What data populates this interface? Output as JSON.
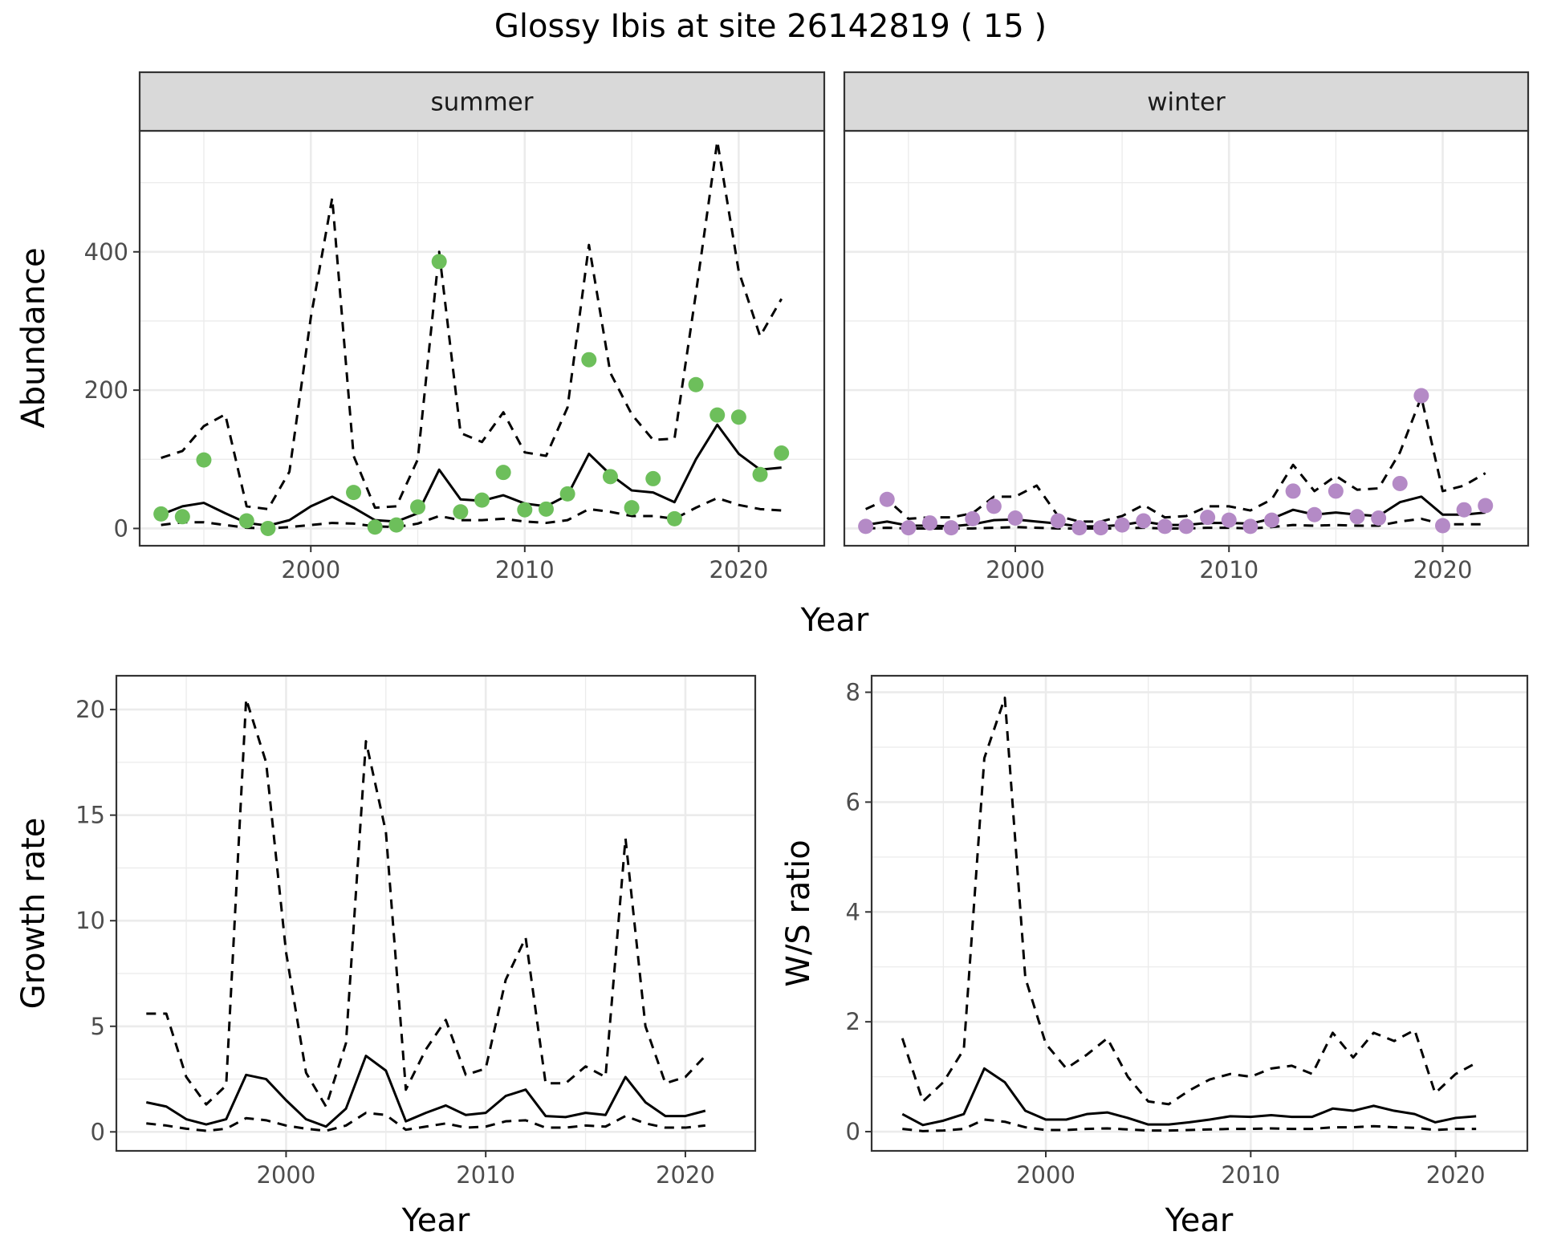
{
  "title": "Glossy Ibis at site 26142819 ( 15 )",
  "colors": {
    "summer_points": "#6dbf5b",
    "winter_points": "#b48ac6",
    "line": "#000000",
    "strip_fill": "#d9d9d9",
    "grid": "#ebebeb"
  },
  "chart_data": [
    {
      "type": "line",
      "panel": "summer",
      "facet_label": "summer",
      "xlabel": "Year",
      "ylabel": "Abundance",
      "xlim": [
        1992,
        2024
      ],
      "ylim": [
        -25,
        575
      ],
      "xticks": [
        2000,
        2010,
        2020
      ],
      "yticks": [
        0,
        200,
        400
      ],
      "grid": true,
      "x": [
        1993,
        1994,
        1995,
        1996,
        1997,
        1998,
        1999,
        2000,
        2001,
        2002,
        2003,
        2004,
        2005,
        2006,
        2007,
        2008,
        2009,
        2010,
        2011,
        2012,
        2013,
        2014,
        2015,
        2016,
        2017,
        2018,
        2019,
        2020,
        2021,
        2022
      ],
      "series": [
        {
          "style": "dashed",
          "values": [
            102,
            112,
            148,
            165,
            32,
            28,
            82,
            305,
            478,
            105,
            30,
            32,
            100,
            400,
            138,
            125,
            168,
            110,
            105,
            175,
            410,
            225,
            165,
            128,
            130,
            340,
            560,
            372,
            278,
            332
          ]
        },
        {
          "style": "solid",
          "values": [
            20,
            32,
            37,
            22,
            8,
            4,
            12,
            32,
            46,
            30,
            12,
            10,
            22,
            85,
            42,
            40,
            48,
            36,
            32,
            48,
            108,
            78,
            55,
            52,
            38,
            100,
            150,
            108,
            85,
            88
          ]
        },
        {
          "style": "dashed",
          "values": [
            5,
            9,
            9,
            5,
            1,
            0,
            2,
            5,
            8,
            7,
            3,
            2,
            7,
            18,
            12,
            12,
            14,
            10,
            8,
            12,
            28,
            24,
            18,
            18,
            14,
            30,
            44,
            34,
            28,
            26
          ]
        }
      ],
      "points": {
        "x": [
          1993,
          1994,
          1995,
          1997,
          1998,
          2002,
          2003,
          2004,
          2005,
          2006,
          2007,
          2008,
          2009,
          2010,
          2011,
          2012,
          2013,
          2014,
          2015,
          2016,
          2017,
          2018,
          2019,
          2020,
          2021,
          2022
        ],
        "y": [
          21,
          17,
          99,
          11,
          0,
          52,
          2,
          5,
          31,
          386,
          24,
          41,
          81,
          27,
          28,
          50,
          244,
          75,
          30,
          72,
          14,
          208,
          164,
          161,
          78,
          109
        ]
      }
    },
    {
      "type": "line",
      "panel": "winter",
      "facet_label": "winter",
      "xlabel": "Year",
      "ylabel": "",
      "xlim": [
        1992,
        2024
      ],
      "ylim": [
        -25,
        575
      ],
      "xticks": [
        2000,
        2010,
        2020
      ],
      "yticks": [
        0,
        200,
        400
      ],
      "grid": true,
      "x": [
        1993,
        1994,
        1995,
        1996,
        1997,
        1998,
        1999,
        2000,
        2001,
        2002,
        2003,
        2004,
        2005,
        2006,
        2007,
        2008,
        2009,
        2010,
        2011,
        2012,
        2013,
        2014,
        2015,
        2016,
        2017,
        2018,
        2019,
        2020,
        2021,
        2022
      ],
      "series": [
        {
          "style": "dashed",
          "values": [
            28,
            42,
            14,
            16,
            16,
            22,
            46,
            46,
            62,
            18,
            10,
            10,
            18,
            34,
            16,
            18,
            32,
            32,
            26,
            42,
            92,
            54,
            76,
            56,
            58,
            110,
            190,
            54,
            62,
            80
          ]
        },
        {
          "style": "solid",
          "values": [
            5,
            10,
            4,
            4,
            3,
            6,
            12,
            13,
            10,
            7,
            3,
            3,
            5,
            10,
            5,
            5,
            8,
            8,
            7,
            14,
            27,
            20,
            23,
            20,
            18,
            38,
            46,
            20,
            20,
            23
          ]
        },
        {
          "style": "dashed",
          "values": [
            0,
            1,
            0,
            0,
            0,
            0,
            1,
            2,
            1,
            0,
            0,
            0,
            0,
            1,
            0,
            0,
            1,
            1,
            0,
            2,
            5,
            4,
            5,
            4,
            4,
            10,
            14,
            6,
            6,
            6
          ]
        }
      ],
      "points": {
        "x": [
          1993,
          1994,
          1995,
          1996,
          1997,
          1998,
          1999,
          2000,
          2002,
          2003,
          2004,
          2005,
          2006,
          2007,
          2008,
          2009,
          2010,
          2011,
          2012,
          2013,
          2014,
          2015,
          2016,
          2017,
          2018,
          2019,
          2020,
          2021,
          2022
        ],
        "y": [
          3,
          42,
          1,
          8,
          1,
          14,
          32,
          15,
          11,
          1,
          1,
          5,
          11,
          3,
          3,
          16,
          12,
          3,
          12,
          54,
          20,
          54,
          17,
          15,
          65,
          192,
          4,
          27,
          33
        ]
      }
    },
    {
      "type": "line",
      "panel": "growth",
      "xlabel": "Year",
      "ylabel": "Growth rate",
      "xlim": [
        1991.5,
        2023.5
      ],
      "ylim": [
        -0.9,
        21.6
      ],
      "xticks": [
        2000,
        2010,
        2020
      ],
      "yticks": [
        0,
        5,
        10,
        15,
        20
      ],
      "grid": true,
      "x": [
        1993,
        1994,
        1995,
        1996,
        1997,
        1998,
        1999,
        2000,
        2001,
        2002,
        2003,
        2004,
        2005,
        2006,
        2007,
        2008,
        2009,
        2010,
        2011,
        2012,
        2013,
        2014,
        2015,
        2016,
        2017,
        2018,
        2019,
        2020,
        2021
      ],
      "series": [
        {
          "style": "dashed",
          "values": [
            5.6,
            5.6,
            2.6,
            1.3,
            2.2,
            20.5,
            17.5,
            8.5,
            2.8,
            1.2,
            4.2,
            18.5,
            14.2,
            2.0,
            3.9,
            5.3,
            2.7,
            3.0,
            7.2,
            9.2,
            2.3,
            2.3,
            3.1,
            2.6,
            13.9,
            5.0,
            2.3,
            2.6,
            3.6
          ]
        },
        {
          "style": "solid",
          "values": [
            1.4,
            1.2,
            0.6,
            0.35,
            0.6,
            2.7,
            2.5,
            1.5,
            0.6,
            0.25,
            1.1,
            3.6,
            2.9,
            0.5,
            0.9,
            1.25,
            0.8,
            0.9,
            1.7,
            2.0,
            0.75,
            0.7,
            0.9,
            0.8,
            2.6,
            1.4,
            0.75,
            0.75,
            1.0
          ]
        },
        {
          "style": "dashed",
          "values": [
            0.4,
            0.3,
            0.15,
            0.05,
            0.15,
            0.65,
            0.55,
            0.3,
            0.15,
            0.05,
            0.3,
            0.9,
            0.8,
            0.1,
            0.25,
            0.4,
            0.2,
            0.25,
            0.5,
            0.55,
            0.2,
            0.2,
            0.3,
            0.25,
            0.75,
            0.4,
            0.2,
            0.2,
            0.3
          ]
        }
      ]
    },
    {
      "type": "line",
      "panel": "ws_ratio",
      "xlabel": "Year",
      "ylabel": "W/S ratio",
      "xlim": [
        1991.5,
        2023.5
      ],
      "ylim": [
        -0.35,
        8.3
      ],
      "xticks": [
        2000,
        2010,
        2020
      ],
      "yticks": [
        0,
        2,
        4,
        6,
        8
      ],
      "grid": true,
      "x": [
        1993,
        1994,
        1995,
        1996,
        1997,
        1998,
        1999,
        2000,
        2001,
        2002,
        2003,
        2004,
        2005,
        2006,
        2007,
        2008,
        2009,
        2010,
        2011,
        2012,
        2013,
        2014,
        2015,
        2016,
        2017,
        2018,
        2019,
        2020,
        2021
      ],
      "series": [
        {
          "style": "dashed",
          "values": [
            1.7,
            0.55,
            0.9,
            1.5,
            6.8,
            7.9,
            2.8,
            1.6,
            1.15,
            1.4,
            1.7,
            1.0,
            0.55,
            0.5,
            0.75,
            0.95,
            1.05,
            1.0,
            1.15,
            1.2,
            1.05,
            1.8,
            1.35,
            1.8,
            1.65,
            1.85,
            0.7,
            1.05,
            1.25
          ]
        },
        {
          "style": "solid",
          "values": [
            0.32,
            0.12,
            0.2,
            0.32,
            1.15,
            0.9,
            0.38,
            0.22,
            0.22,
            0.32,
            0.35,
            0.25,
            0.13,
            0.13,
            0.17,
            0.22,
            0.28,
            0.27,
            0.3,
            0.27,
            0.27,
            0.42,
            0.38,
            0.47,
            0.38,
            0.32,
            0.17,
            0.25,
            0.28
          ]
        },
        {
          "style": "dashed",
          "values": [
            0.05,
            0.01,
            0.02,
            0.05,
            0.22,
            0.18,
            0.08,
            0.03,
            0.03,
            0.05,
            0.06,
            0.04,
            0.02,
            0.02,
            0.03,
            0.04,
            0.05,
            0.05,
            0.06,
            0.05,
            0.05,
            0.08,
            0.08,
            0.1,
            0.08,
            0.07,
            0.03,
            0.05,
            0.05
          ]
        }
      ]
    }
  ]
}
